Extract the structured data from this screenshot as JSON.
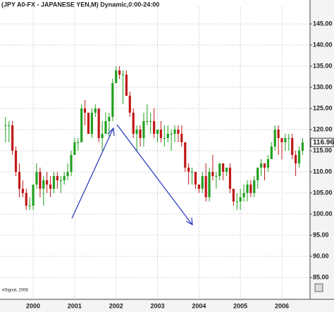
{
  "chart_data": {
    "type": "candlestick",
    "title": "(JPY A0-FX - JAPANESE YEN,M) Dynamic,0:00-24:00",
    "source": "eSignal, 2008",
    "last_price": {
      "value": 116.96,
      "label": "116.96"
    },
    "up_color": "#22a022",
    "down_color": "#c01818",
    "grid": true,
    "xlim": [
      1999.2,
      2006.68
    ],
    "xticks": [
      2000,
      2001,
      2002,
      2003,
      2004,
      2005,
      2006
    ],
    "ylim": [
      80,
      149
    ],
    "yticks": [
      {
        "value": 85,
        "label": "85.00"
      },
      {
        "value": 90,
        "label": "90.00"
      },
      {
        "value": 95,
        "label": "95.00"
      },
      {
        "value": 100,
        "label": "100.00"
      },
      {
        "value": 105,
        "label": "105.00"
      },
      {
        "value": 110,
        "label": "110.00"
      },
      {
        "value": 115,
        "label": "115.00"
      },
      {
        "value": 120,
        "label": "120.00"
      },
      {
        "value": 125,
        "label": "125.00"
      },
      {
        "value": 130,
        "label": "130.00"
      },
      {
        "value": 135,
        "label": "135.00"
      },
      {
        "value": 140,
        "label": "140.00"
      },
      {
        "value": 145,
        "label": "145.00"
      }
    ],
    "x": [
      1999.333,
      1999.417,
      1999.5,
      1999.583,
      1999.667,
      1999.75,
      1999.833,
      1999.917,
      2000,
      2000.083,
      2000.167,
      2000.25,
      2000.333,
      2000.417,
      2000.5,
      2000.583,
      2000.667,
      2000.75,
      2000.833,
      2000.917,
      2001,
      2001.083,
      2001.167,
      2001.25,
      2001.333,
      2001.417,
      2001.5,
      2001.583,
      2001.667,
      2001.75,
      2001.833,
      2001.917,
      2002,
      2002.083,
      2002.167,
      2002.25,
      2002.333,
      2002.417,
      2002.5,
      2002.583,
      2002.667,
      2002.75,
      2002.833,
      2002.917,
      2003,
      2003.083,
      2003.167,
      2003.25,
      2003.333,
      2003.417,
      2003.5,
      2003.583,
      2003.667,
      2003.75,
      2003.833,
      2003.917,
      2004,
      2004.083,
      2004.167,
      2004.25,
      2004.333,
      2004.417,
      2004.5,
      2004.583,
      2004.667,
      2004.75,
      2004.833,
      2004.917,
      2005,
      2005.083,
      2005.167,
      2005.25,
      2005.333,
      2005.417,
      2005.5,
      2005.583,
      2005.667,
      2005.75,
      2005.833,
      2005.917,
      2006,
      2006.083,
      2006.167,
      2006.25,
      2006.333,
      2006.417,
      2006.5
    ],
    "open": [
      121,
      121,
      121,
      115,
      110,
      106,
      105,
      102,
      102,
      107,
      110,
      106,
      108,
      107,
      106,
      109,
      108,
      108,
      109,
      110,
      114,
      117,
      117,
      125,
      124,
      119,
      124,
      125,
      118,
      119,
      122,
      123,
      131,
      134,
      133,
      133,
      128,
      124,
      119,
      120,
      118,
      122,
      122,
      122,
      119,
      120,
      118,
      118,
      119,
      119,
      120,
      119,
      117,
      111,
      110,
      110,
      107,
      106,
      109,
      104,
      110,
      109,
      109,
      112,
      110,
      111,
      106,
      103,
      103,
      104,
      105,
      107,
      105,
      108,
      111,
      112,
      111,
      113,
      116,
      120,
      118,
      117,
      118,
      118,
      114,
      112,
      115
    ],
    "high": [
      123,
      122,
      122,
      116,
      112,
      108,
      106,
      104,
      107,
      112,
      111,
      109,
      110,
      109,
      110,
      110,
      109,
      110,
      112,
      115,
      118,
      118,
      126,
      127,
      124,
      125,
      126,
      125,
      122,
      124,
      124,
      132,
      135,
      135,
      134,
      134,
      129,
      125,
      121,
      121,
      124,
      126,
      124,
      125,
      120,
      122,
      121,
      121,
      120,
      121,
      121,
      121,
      117,
      112,
      111,
      110,
      107,
      110,
      112,
      111,
      114,
      110,
      112,
      112,
      111,
      112,
      106,
      105,
      106,
      107,
      108,
      108,
      109,
      111,
      113,
      112,
      114,
      117,
      121,
      121,
      118,
      119,
      119,
      119,
      115,
      116,
      118
    ],
    "low": [
      117,
      117,
      114,
      109,
      104,
      104,
      101,
      101,
      101,
      106,
      104,
      102,
      105,
      104,
      105,
      106,
      105,
      107,
      108,
      109,
      114,
      115,
      117,
      121,
      119,
      118,
      123,
      117,
      115,
      119,
      118,
      122,
      131,
      132,
      126,
      128,
      123,
      118,
      115,
      116,
      116,
      121,
      119,
      118,
      117,
      117,
      116,
      117,
      115,
      117,
      117,
      116,
      110,
      107,
      107,
      106,
      105,
      105,
      103,
      103,
      108,
      106,
      108,
      108,
      109,
      105,
      102,
      101,
      101,
      103,
      103,
      104,
      104,
      106,
      109,
      108,
      110,
      113,
      115,
      114,
      113,
      115,
      115,
      113,
      109,
      111,
      114
    ],
    "close": [
      121,
      121,
      115,
      110,
      106,
      105,
      102,
      102,
      107,
      110,
      106,
      108,
      107,
      106,
      109,
      108,
      108,
      109,
      110,
      114,
      117,
      117,
      125,
      124,
      119,
      124,
      125,
      118,
      119,
      122,
      123,
      131,
      134,
      133,
      133,
      128,
      124,
      119,
      120,
      118,
      122,
      122,
      122,
      119,
      120,
      118,
      118,
      119,
      119,
      120,
      119,
      117,
      111,
      110,
      110,
      107,
      106,
      109,
      104,
      110,
      109,
      109,
      112,
      110,
      111,
      106,
      103,
      103,
      104,
      105,
      107,
      105,
      108,
      111,
      112,
      111,
      113,
      116,
      120,
      118,
      117,
      118,
      118,
      114,
      112,
      115,
      116.96
    ]
  }
}
